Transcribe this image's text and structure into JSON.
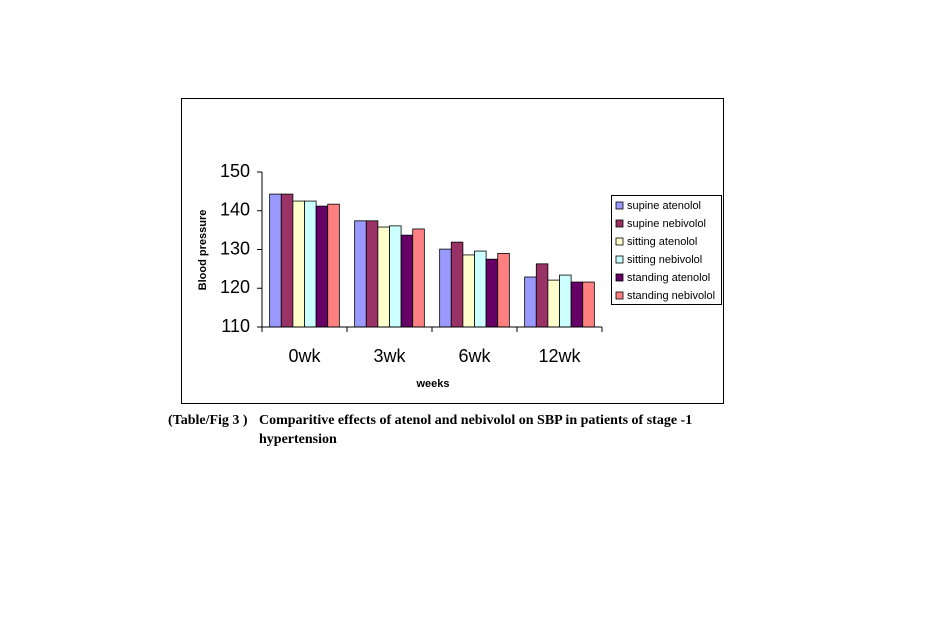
{
  "chart_data": {
    "type": "bar",
    "y_label": "Blood pressure",
    "x_label": "weeks",
    "categories": [
      "0wk",
      "3wk",
      "6wk",
      "12wk"
    ],
    "series": [
      {
        "name": "supine atenolol",
        "color": "#9999ff",
        "values": [
          144.3,
          137.4,
          130.1,
          122.9
        ]
      },
      {
        "name": "supine nebivolol",
        "color": "#993366",
        "values": [
          144.3,
          137.4,
          131.9,
          126.3
        ]
      },
      {
        "name": "sitting atenolol",
        "color": "#ffffcc",
        "values": [
          142.5,
          135.8,
          128.6,
          122.1
        ]
      },
      {
        "name": "sitting nebivolol",
        "color": "#ccffff",
        "values": [
          142.5,
          136.1,
          129.6,
          123.4
        ]
      },
      {
        "name": "standing atenolol",
        "color": "#660066",
        "values": [
          141.2,
          133.7,
          127.5,
          121.6
        ]
      },
      {
        "name": "standing nebivolol",
        "color": "#ff8080",
        "values": [
          141.7,
          135.3,
          129.0,
          121.6
        ]
      }
    ],
    "ylim": [
      110,
      150
    ],
    "yticks": [
      110,
      120,
      130,
      140,
      150
    ],
    "grid": false,
    "legend": "right"
  },
  "caption": {
    "label": "(Table/Fig 3 )",
    "lines": [
      "Comparitive effects of atenol and nebivolol on SBP in patients of stage -1",
      "hypertension"
    ]
  }
}
